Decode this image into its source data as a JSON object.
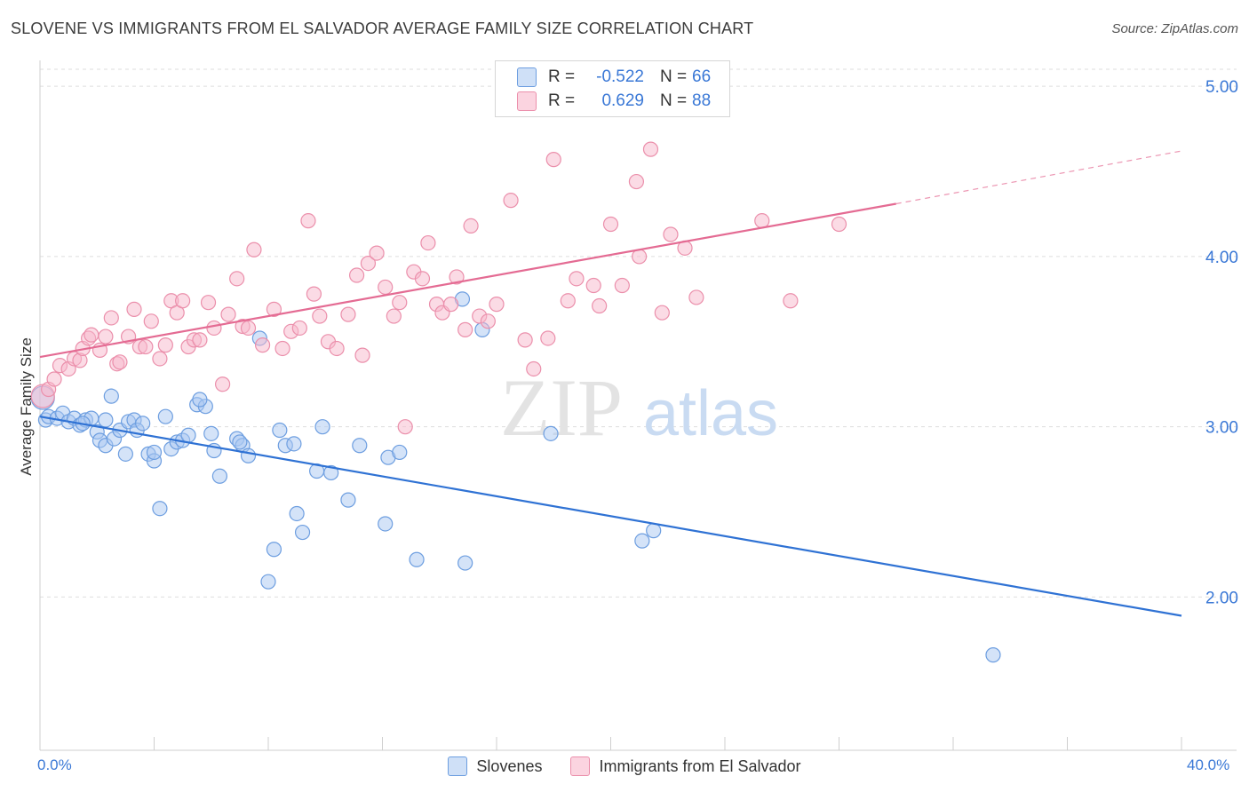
{
  "title": "SLOVENE VS IMMIGRANTS FROM EL SALVADOR AVERAGE FAMILY SIZE CORRELATION CHART",
  "source": "Source: ZipAtlas.com",
  "watermark": {
    "zip": "ZIP",
    "atlas": "atlas"
  },
  "legend": {
    "rows": [
      {
        "r_label": "R =",
        "r_value": "-0.522",
        "n_label": "N =",
        "n_value": "66",
        "color": "#a9c8f2"
      },
      {
        "r_label": "R =",
        "r_value": "0.629",
        "n_label": "N =",
        "n_value": "88",
        "color": "#f7b8cb"
      }
    ]
  },
  "colors": {
    "slovene_fill": "#a9c8f2",
    "slovene_stroke": "#6d9ee0",
    "slovene_line": "#2f72d4",
    "salvador_fill": "#f7b8cb",
    "salvador_stroke": "#eb8fab",
    "salvador_line": "#e46b93",
    "tick_text": "#3a78d6",
    "grid": "#dedede"
  },
  "chart_data": {
    "type": "scatter",
    "title": "SLOVENE VS IMMIGRANTS FROM EL SALVADOR AVERAGE FAMILY SIZE CORRELATION CHART",
    "xlabel": "",
    "ylabel": "Average Family Size",
    "xlim": [
      0,
      40
    ],
    "ylim": [
      1.1,
      5.1
    ],
    "x_tick_labels": [
      "0.0%",
      "40.0%"
    ],
    "y_ticks": [
      2.0,
      3.0,
      4.0,
      5.0
    ],
    "y_tick_labels": [
      "2.00",
      "3.00",
      "4.00",
      "5.00"
    ],
    "grid": true,
    "legend_position": "top-center",
    "series": [
      {
        "name": "Slovenes",
        "trend": {
          "x": [
            0,
            40
          ],
          "y": [
            3.06,
            1.89
          ]
        },
        "points": [
          [
            0.1,
            3.17
          ],
          [
            0.2,
            3.04
          ],
          [
            0.3,
            3.06
          ],
          [
            0.6,
            3.05
          ],
          [
            0.8,
            3.08
          ],
          [
            1.0,
            3.03
          ],
          [
            1.2,
            3.05
          ],
          [
            1.4,
            3.01
          ],
          [
            1.6,
            3.04
          ],
          [
            1.8,
            3.05
          ],
          [
            2.0,
            2.97
          ],
          [
            2.1,
            2.92
          ],
          [
            2.3,
            2.89
          ],
          [
            2.5,
            3.18
          ],
          [
            2.6,
            2.93
          ],
          [
            2.8,
            2.98
          ],
          [
            3.0,
            2.84
          ],
          [
            3.1,
            3.03
          ],
          [
            3.3,
            3.04
          ],
          [
            3.4,
            2.98
          ],
          [
            3.6,
            3.02
          ],
          [
            3.8,
            2.84
          ],
          [
            4.0,
            2.8
          ],
          [
            4.2,
            2.52
          ],
          [
            4.4,
            3.06
          ],
          [
            4.6,
            2.87
          ],
          [
            4.8,
            2.91
          ],
          [
            5.0,
            2.92
          ],
          [
            5.2,
            2.95
          ],
          [
            5.5,
            3.13
          ],
          [
            5.8,
            3.12
          ],
          [
            6.0,
            2.96
          ],
          [
            6.1,
            2.86
          ],
          [
            6.3,
            2.71
          ],
          [
            6.9,
            2.93
          ],
          [
            7.1,
            2.89
          ],
          [
            7.3,
            2.83
          ],
          [
            7.7,
            3.52
          ],
          [
            8.0,
            2.09
          ],
          [
            8.2,
            2.28
          ],
          [
            8.4,
            2.98
          ],
          [
            8.6,
            2.89
          ],
          [
            8.9,
            2.9
          ],
          [
            9.0,
            2.49
          ],
          [
            9.2,
            2.38
          ],
          [
            9.7,
            2.74
          ],
          [
            9.9,
            3.0
          ],
          [
            10.2,
            2.73
          ],
          [
            10.8,
            2.57
          ],
          [
            11.2,
            2.89
          ],
          [
            12.1,
            2.43
          ],
          [
            12.2,
            2.82
          ],
          [
            12.6,
            2.85
          ],
          [
            13.2,
            2.22
          ],
          [
            14.8,
            3.75
          ],
          [
            14.9,
            2.2
          ],
          [
            15.5,
            3.57
          ],
          [
            17.9,
            2.96
          ],
          [
            21.1,
            2.33
          ],
          [
            21.5,
            2.39
          ],
          [
            33.4,
            1.66
          ],
          [
            4.0,
            2.85
          ],
          [
            5.6,
            3.16
          ],
          [
            2.3,
            3.04
          ],
          [
            1.5,
            3.02
          ],
          [
            7.0,
            2.91
          ]
        ]
      },
      {
        "name": "Immigrants from El Salvador",
        "trend": {
          "x": [
            0,
            30
          ],
          "y": [
            3.41,
            4.31
          ]
        },
        "trend_dashed": {
          "x": [
            30,
            40
          ],
          "y": [
            4.31,
            4.62
          ]
        },
        "points": [
          [
            0.1,
            3.18
          ],
          [
            0.3,
            3.22
          ],
          [
            0.5,
            3.28
          ],
          [
            0.7,
            3.36
          ],
          [
            1.0,
            3.34
          ],
          [
            1.2,
            3.4
          ],
          [
            1.4,
            3.39
          ],
          [
            1.5,
            3.46
          ],
          [
            1.7,
            3.52
          ],
          [
            1.8,
            3.54
          ],
          [
            2.1,
            3.45
          ],
          [
            2.3,
            3.53
          ],
          [
            2.5,
            3.64
          ],
          [
            2.7,
            3.37
          ],
          [
            2.8,
            3.38
          ],
          [
            3.1,
            3.53
          ],
          [
            3.3,
            3.69
          ],
          [
            3.5,
            3.47
          ],
          [
            3.7,
            3.47
          ],
          [
            3.9,
            3.62
          ],
          [
            4.2,
            3.4
          ],
          [
            4.4,
            3.48
          ],
          [
            4.6,
            3.74
          ],
          [
            4.8,
            3.67
          ],
          [
            5.0,
            3.74
          ],
          [
            5.2,
            3.47
          ],
          [
            5.4,
            3.51
          ],
          [
            5.6,
            3.51
          ],
          [
            5.9,
            3.73
          ],
          [
            6.1,
            3.58
          ],
          [
            6.4,
            3.25
          ],
          [
            6.6,
            3.66
          ],
          [
            6.9,
            3.87
          ],
          [
            7.1,
            3.59
          ],
          [
            7.3,
            3.58
          ],
          [
            7.5,
            4.04
          ],
          [
            7.8,
            3.48
          ],
          [
            8.2,
            3.69
          ],
          [
            8.5,
            3.46
          ],
          [
            8.8,
            3.56
          ],
          [
            9.1,
            3.58
          ],
          [
            9.4,
            4.21
          ],
          [
            9.6,
            3.78
          ],
          [
            9.8,
            3.65
          ],
          [
            10.1,
            3.5
          ],
          [
            10.4,
            3.46
          ],
          [
            10.8,
            3.66
          ],
          [
            11.1,
            3.89
          ],
          [
            11.3,
            3.42
          ],
          [
            11.5,
            3.96
          ],
          [
            11.8,
            4.02
          ],
          [
            12.1,
            3.82
          ],
          [
            12.4,
            3.65
          ],
          [
            12.6,
            3.73
          ],
          [
            12.8,
            3.0
          ],
          [
            13.1,
            3.91
          ],
          [
            13.4,
            3.87
          ],
          [
            13.6,
            4.08
          ],
          [
            13.9,
            3.72
          ],
          [
            14.1,
            3.67
          ],
          [
            14.4,
            3.72
          ],
          [
            14.6,
            3.88
          ],
          [
            14.9,
            3.57
          ],
          [
            15.1,
            4.18
          ],
          [
            15.4,
            3.65
          ],
          [
            15.7,
            3.62
          ],
          [
            16.0,
            3.72
          ],
          [
            16.5,
            4.33
          ],
          [
            17.0,
            3.51
          ],
          [
            17.3,
            3.34
          ],
          [
            17.8,
            3.52
          ],
          [
            18.0,
            4.57
          ],
          [
            18.5,
            3.74
          ],
          [
            18.8,
            3.87
          ],
          [
            19.4,
            3.83
          ],
          [
            19.6,
            3.71
          ],
          [
            20.0,
            4.19
          ],
          [
            20.4,
            3.83
          ],
          [
            20.9,
            4.44
          ],
          [
            21.0,
            4.0
          ],
          [
            21.4,
            4.63
          ],
          [
            21.8,
            3.67
          ],
          [
            22.1,
            4.13
          ],
          [
            22.6,
            4.05
          ],
          [
            23.0,
            3.76
          ],
          [
            25.3,
            4.21
          ],
          [
            26.3,
            3.74
          ],
          [
            28.0,
            4.19
          ]
        ]
      }
    ]
  },
  "bottom_legend": {
    "slovenes": "Slovenes",
    "salvador": "Immigrants from El Salvador"
  }
}
